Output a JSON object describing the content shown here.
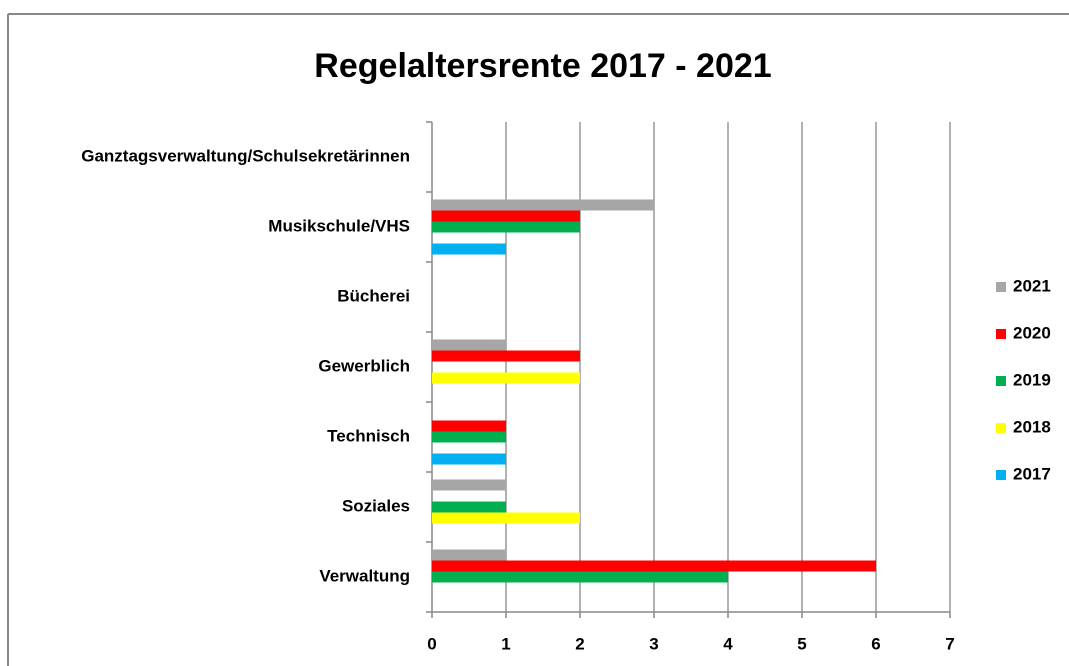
{
  "chart_data": {
    "type": "bar",
    "orientation": "horizontal",
    "title": "Regelaltersrente 2017 - 2021",
    "categories": [
      "Verwaltung",
      "Soziales",
      "Technisch",
      "Gewerblich",
      "Bücherei",
      "Musikschule/VHS",
      "Ganztagsverwaltung/Schulsekretärinnen"
    ],
    "series": [
      {
        "name": "2021",
        "color": "#a6a6a6",
        "values": [
          1,
          1,
          0,
          1,
          0,
          3,
          0
        ]
      },
      {
        "name": "2020",
        "color": "#ff0000",
        "values": [
          6,
          0,
          1,
          2,
          0,
          2,
          0
        ]
      },
      {
        "name": "2019",
        "color": "#00b050",
        "values": [
          4,
          1,
          1,
          0,
          0,
          2,
          0
        ]
      },
      {
        "name": "2018",
        "color": "#ffff00",
        "values": [
          0,
          2,
          0,
          2,
          0,
          0,
          0
        ]
      },
      {
        "name": "2017",
        "color": "#00b0f0",
        "values": [
          0,
          0,
          1,
          0,
          0,
          1,
          0
        ]
      }
    ],
    "xlim": [
      0,
      7
    ],
    "xticks": [
      0,
      1,
      2,
      3,
      4,
      5,
      6,
      7
    ],
    "grid": true,
    "legend": "right"
  }
}
